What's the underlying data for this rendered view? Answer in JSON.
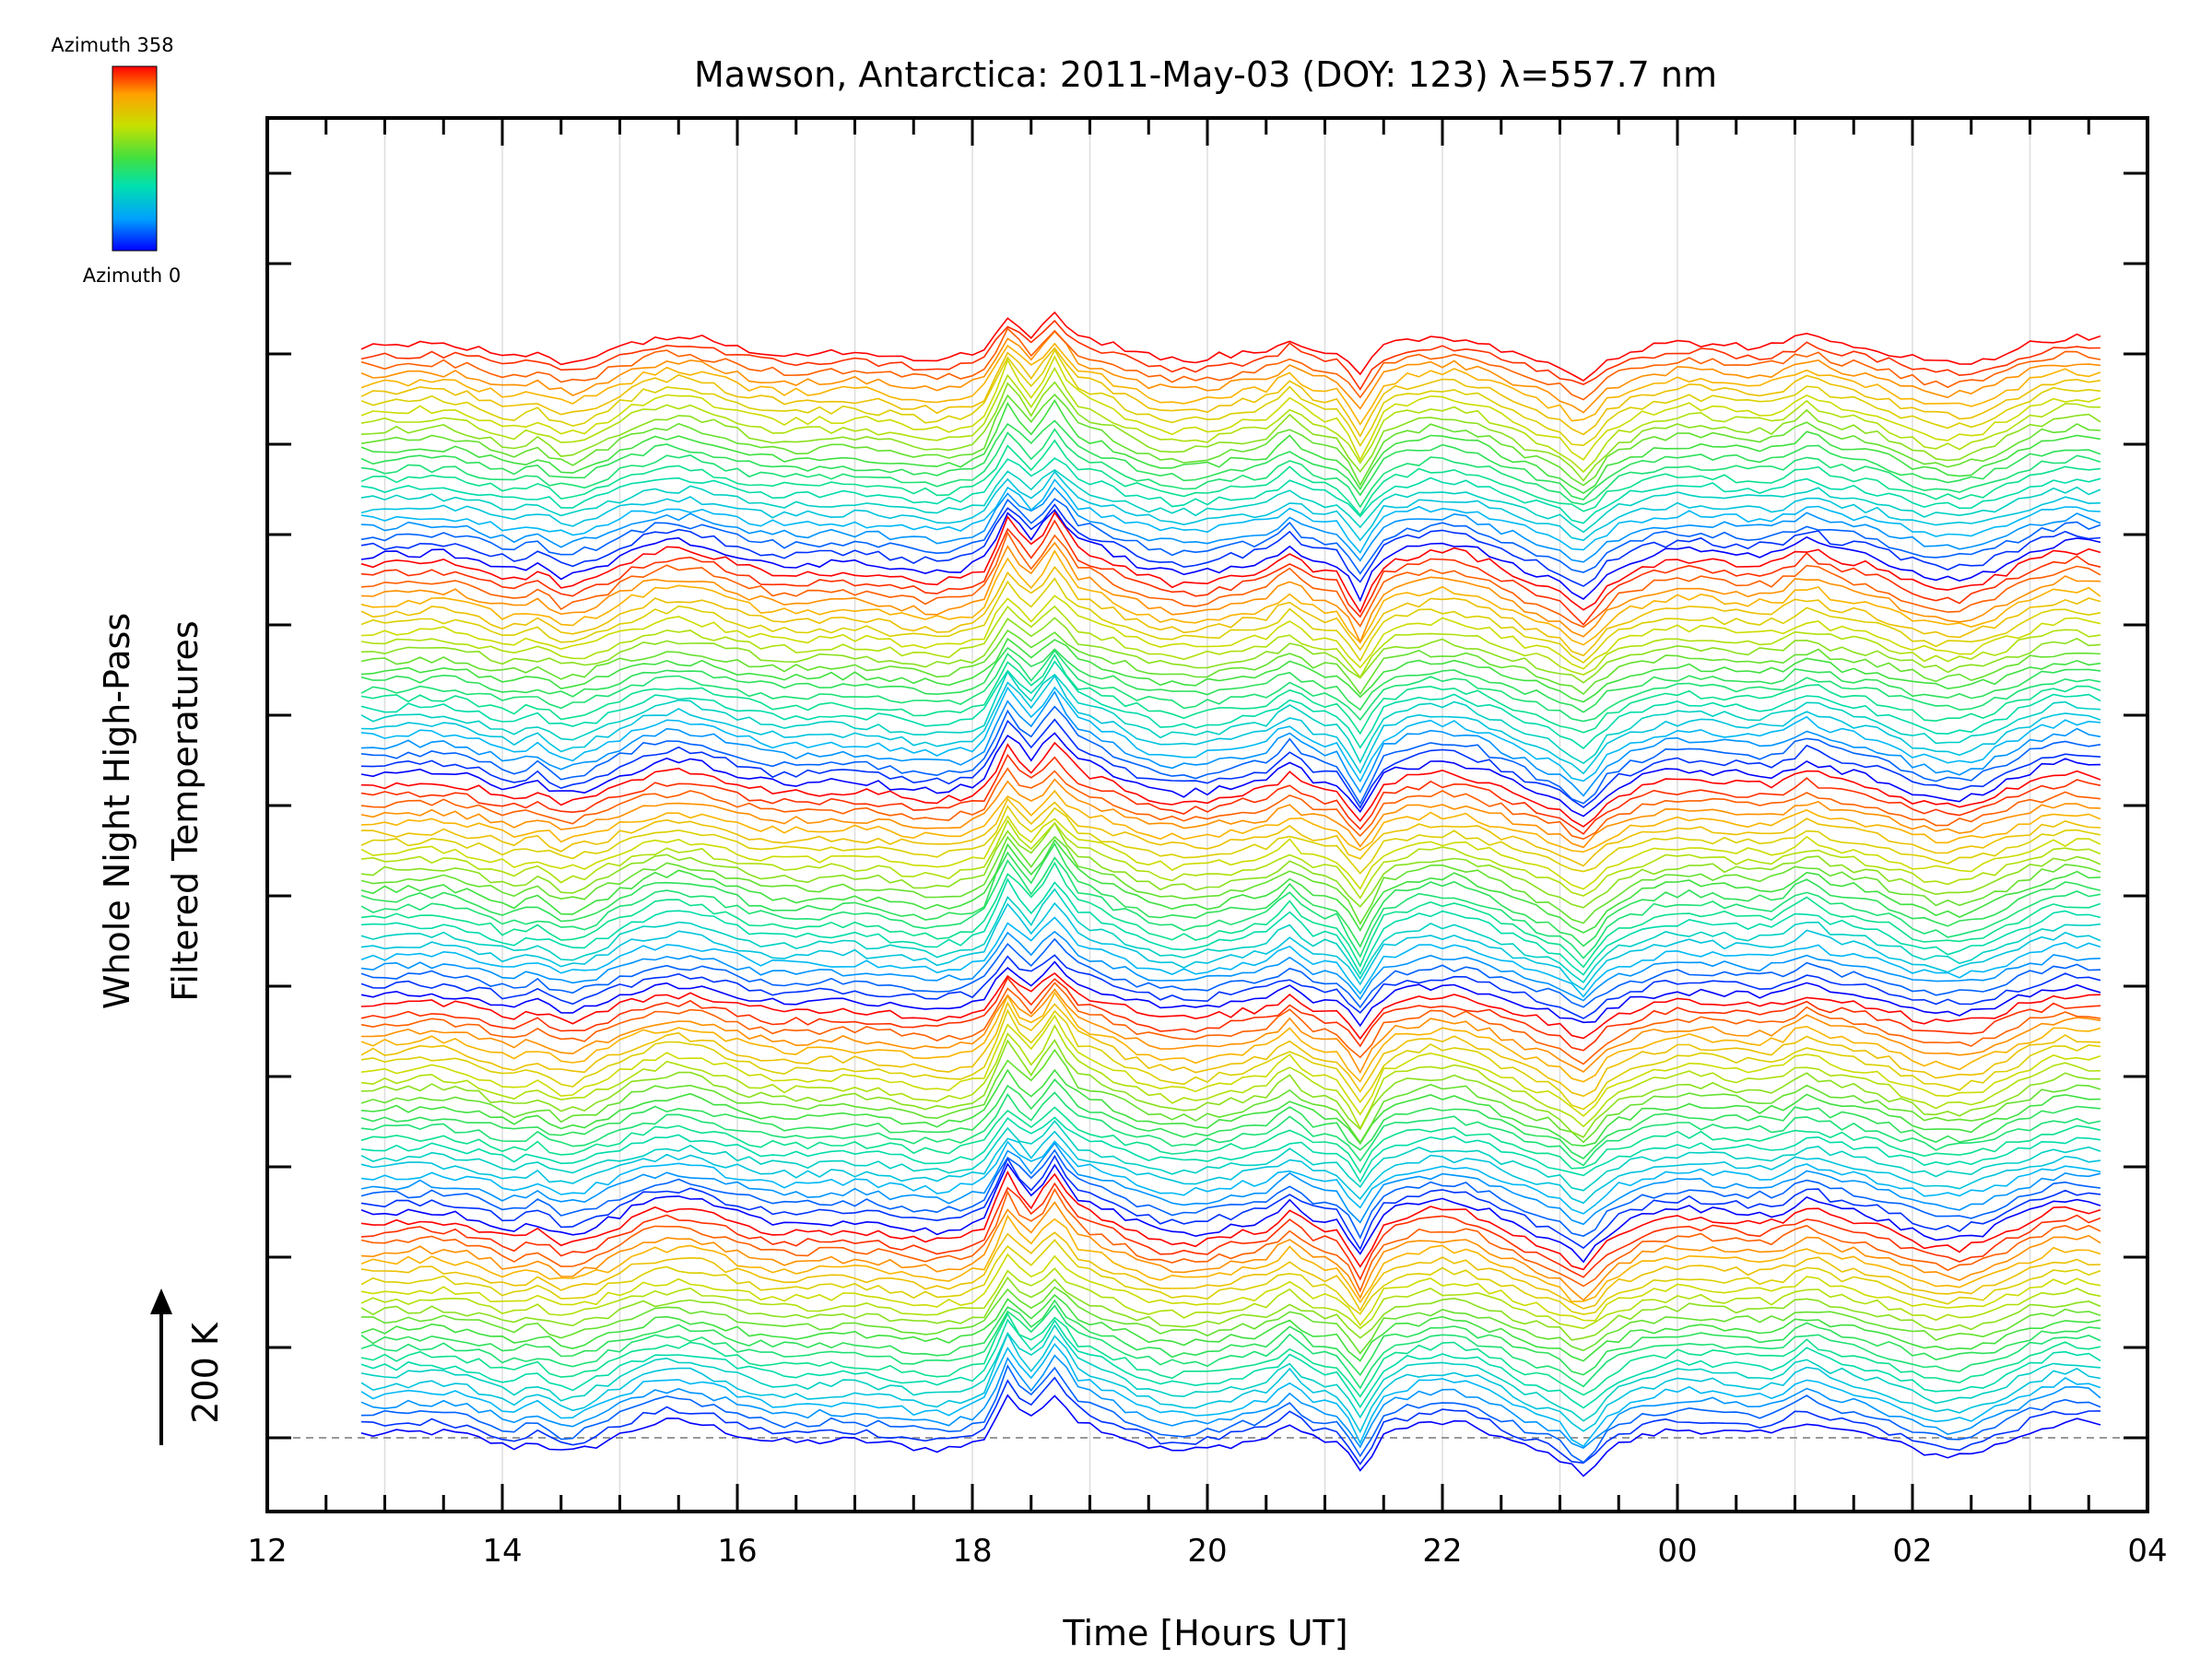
{
  "chart_data": {
    "type": "line",
    "title": "Mawson, Antarctica: 2011-May-03 (DOY: 123) λ=557.7 nm",
    "xlabel": "Time [Hours UT]",
    "ylabel_lines": [
      "Whole Night High-Pass",
      "Filtered Temperatures"
    ],
    "scale_bar_label": "200 K",
    "x_ticks": [
      "12",
      "14",
      "16",
      "18",
      "20",
      "22",
      "00",
      "02",
      "04"
    ],
    "xlim": [
      12,
      28
    ],
    "x_range_data": [
      12.8,
      27.6
    ],
    "colorbar": {
      "top_label": "Azimuth 358",
      "bottom_label": "Azimuth 0",
      "colormap": [
        "#0000ff",
        "#00b4ff",
        "#00e0a0",
        "#40e040",
        "#c8e000",
        "#ffb000",
        "#ff0000"
      ]
    },
    "series_count": 115,
    "series_per_cycle": 23,
    "series_spacing_K": 14,
    "disturbance_events": [
      {
        "time": 18.3,
        "amplitude_K": 60
      },
      {
        "time": 18.7,
        "amplitude_K": 45
      },
      {
        "time": 20.7,
        "amplitude_K": 25
      },
      {
        "time": 21.3,
        "amplitude_K": -55
      }
    ],
    "grid": "vertical"
  }
}
